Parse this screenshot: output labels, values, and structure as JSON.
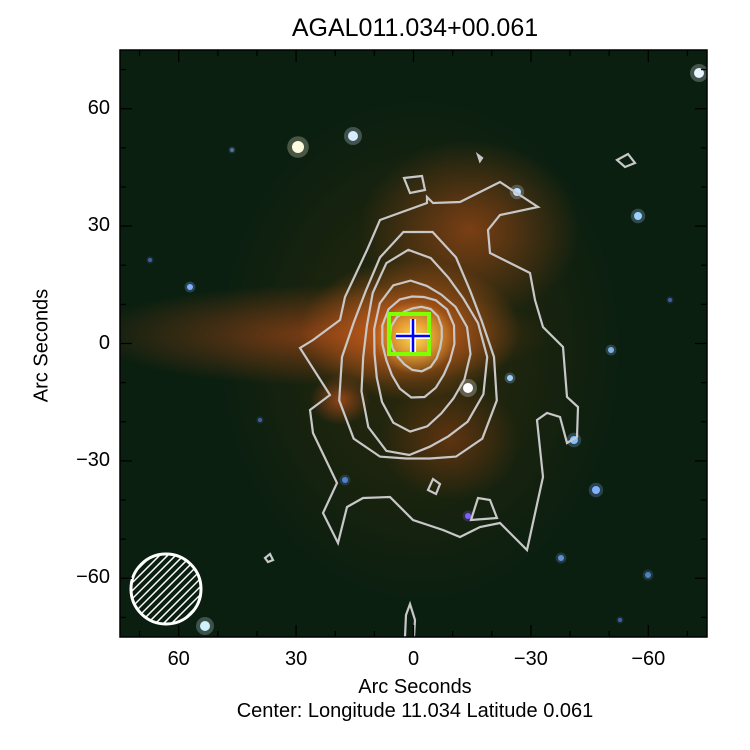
{
  "chart_data": {
    "type": "image-contour",
    "title": "AGAL011.034+00.061",
    "xlabel": "Arc Seconds",
    "ylabel": "Arc Seconds",
    "xlim": [
      75,
      -75
    ],
    "ylim": [
      -75,
      75
    ],
    "xticks": [
      60,
      30,
      0,
      -30,
      -60
    ],
    "yticks": [
      60,
      30,
      0,
      -30,
      -60
    ],
    "minor_tick_step": 10,
    "center_text": "Center:  Longitude 11.034 Latitude 0.061",
    "contour_color": "#c8c8c8",
    "marker_box_color": "#7fff00",
    "marker_cross_color": "#0000ff",
    "beam": "hatched-circle"
  }
}
